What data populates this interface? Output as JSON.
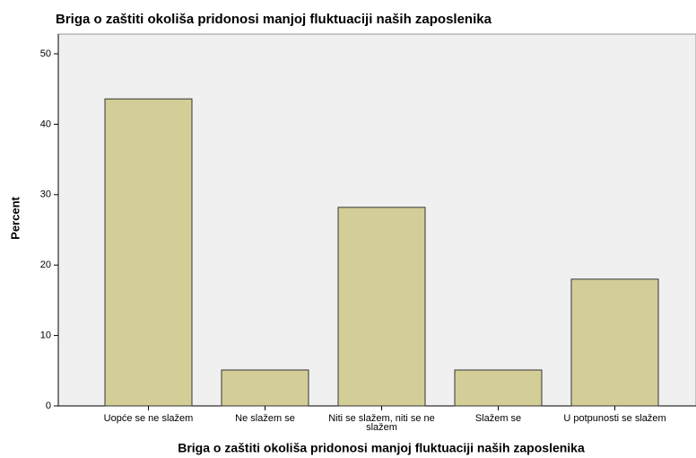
{
  "chart_data": {
    "type": "bar",
    "title": "Briga o zaštiti okoliša pridonosi manjoj fluktuaciji naših zaposlenika",
    "x_label": "Briga o zaštiti okoliša pridonosi manjoj fluktuaciji naših zaposlenika",
    "y_label": "Percent",
    "categories": [
      "Uopće se ne slažem",
      "Ne slažem se",
      "Niti se slažem, niti se ne slažem",
      "Slažem se",
      "U potpunosti se slažem"
    ],
    "values": [
      43.6,
      5.1,
      28.2,
      5.1,
      18.0
    ],
    "color": "#d3ce97",
    "ylim": [
      0,
      52.8
    ],
    "yticks": [
      0,
      10,
      20,
      30,
      40,
      50
    ],
    "grid": false
  }
}
